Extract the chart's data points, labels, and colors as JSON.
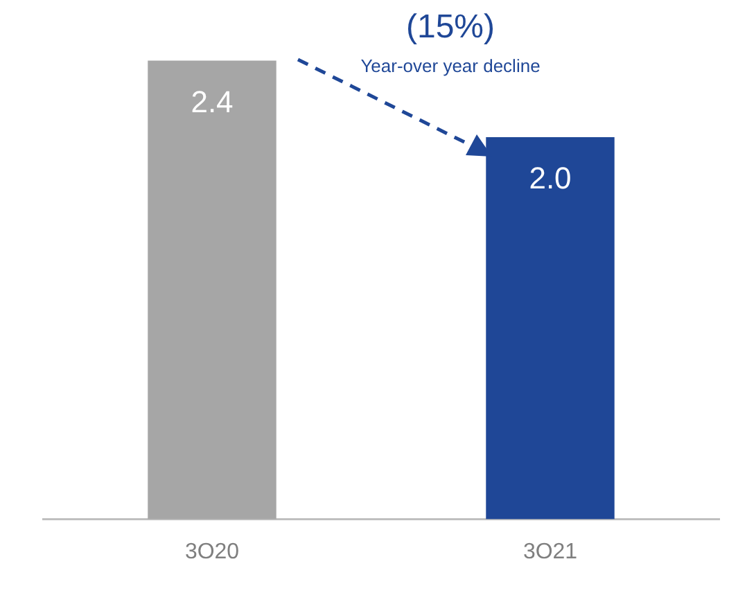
{
  "chart_data": {
    "type": "bar",
    "categories": [
      "3O20",
      "3O21"
    ],
    "values": [
      2.4,
      2.0
    ],
    "colors": [
      "#a6a6a6",
      "#1f4797"
    ],
    "value_labels": [
      "2.4",
      "2.0"
    ],
    "annotations": [
      "(15%)",
      "Year-over year decline"
    ]
  }
}
